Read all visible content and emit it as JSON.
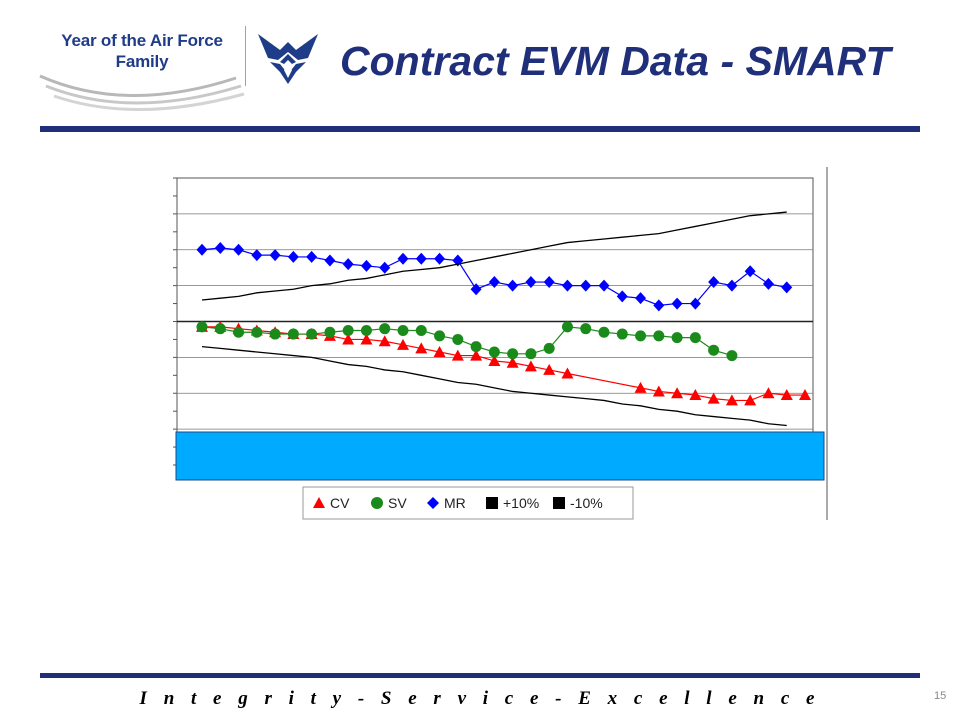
{
  "header": {
    "logo_line1": "Year of the Air Force",
    "logo_line2": "Family",
    "title": "Contract EVM Data - SMART",
    "rule_color": "#1f2f7a"
  },
  "chart_data": {
    "type": "line",
    "title": "",
    "xlabel": "",
    "ylabel": "",
    "grid": true,
    "legend_position": "bottom",
    "y_tick_labels_visible": false,
    "x_tick_labels_visible": false,
    "n_points": 34,
    "ylim": [
      -40,
      40
    ],
    "x": [
      1,
      2,
      3,
      4,
      5,
      6,
      7,
      8,
      9,
      10,
      11,
      12,
      13,
      14,
      15,
      16,
      17,
      18,
      19,
      20,
      21,
      22,
      23,
      24,
      25,
      26,
      27,
      28,
      29,
      30,
      31,
      32,
      33,
      34
    ],
    "series": [
      {
        "name": "CV",
        "color": "#ff0000",
        "marker": "triangle",
        "values": [
          -1.5,
          -1.5,
          -2,
          -2.5,
          -3,
          -3.5,
          -3.5,
          -4,
          -5,
          -5,
          -5.5,
          -6.5,
          -7.5,
          -8.5,
          -9.5,
          -9.5,
          -11,
          -11.5,
          -12.5,
          -13.5,
          -14.5,
          null,
          null,
          -18.5,
          -19.5,
          -20,
          -20.5,
          -21.5,
          -22,
          -22,
          -20,
          -20.5,
          -20.5,
          null
        ],
        "x_override": [
          1,
          2,
          3,
          4,
          5,
          6,
          7,
          8,
          9,
          10,
          11,
          12,
          13,
          14,
          15,
          16,
          17,
          18,
          19,
          20,
          21,
          null,
          null,
          25,
          26,
          27,
          28,
          29,
          30,
          31,
          32,
          33,
          34,
          null
        ]
      },
      {
        "name": "SV",
        "color": "#1a8a1a",
        "marker": "circle",
        "values": [
          -1.5,
          -2,
          -3,
          -3,
          -3.5,
          -3.5,
          -3.5,
          -3,
          -2.5,
          -2.5,
          -2,
          -2.5,
          -2.5,
          -4,
          -5,
          -7,
          -8.5,
          -9,
          -9,
          -7.5,
          -1.5,
          -2,
          -3,
          -3.5,
          -4,
          -4,
          -4.5,
          -4.5,
          -8,
          -9.5,
          null,
          null,
          null,
          null
        ]
      },
      {
        "name": "MR",
        "color": "#0000ff",
        "marker": "diamond",
        "values": [
          20,
          20.5,
          20,
          18.5,
          18.5,
          18,
          18,
          17,
          16,
          15.5,
          15,
          17.5,
          17.5,
          17.5,
          17,
          9,
          11,
          10,
          11,
          11,
          10,
          10,
          10,
          7,
          6.5,
          4.5,
          5,
          5,
          11,
          10,
          14,
          10.5,
          9.5,
          null
        ]
      },
      {
        "name": "+10%",
        "color": "#000000",
        "marker": "square",
        "values": [
          6,
          6.5,
          7,
          8,
          8.5,
          9,
          10,
          10.5,
          11.5,
          12,
          13,
          14,
          14.5,
          15,
          16,
          17,
          18,
          19,
          20,
          21,
          22,
          22.5,
          23,
          23.5,
          24,
          24.5,
          25.5,
          26.5,
          27.5,
          28.5,
          29.5,
          30,
          30.5,
          null
        ]
      },
      {
        "name": "-10%",
        "color": "#000000",
        "marker": "square",
        "values": [
          -7,
          -7.5,
          -8,
          -8.5,
          -9,
          -9.5,
          -10,
          -11,
          -12,
          -12.5,
          -13.5,
          -14,
          -15,
          -16,
          -17,
          -17.5,
          -18.5,
          -19.5,
          -20,
          -20.5,
          -21,
          -21.5,
          -22,
          -23,
          -23.5,
          -24.5,
          -25,
          -26,
          -26.5,
          -27,
          -27.5,
          -28.5,
          -29,
          null
        ]
      }
    ]
  },
  "overlay": {
    "color": "#00aaff",
    "text": ""
  },
  "footer": {
    "motto": "I n t e g r i t y  -  S e r v i c e  -  E x c e l l e n c e",
    "page_number": "15"
  }
}
